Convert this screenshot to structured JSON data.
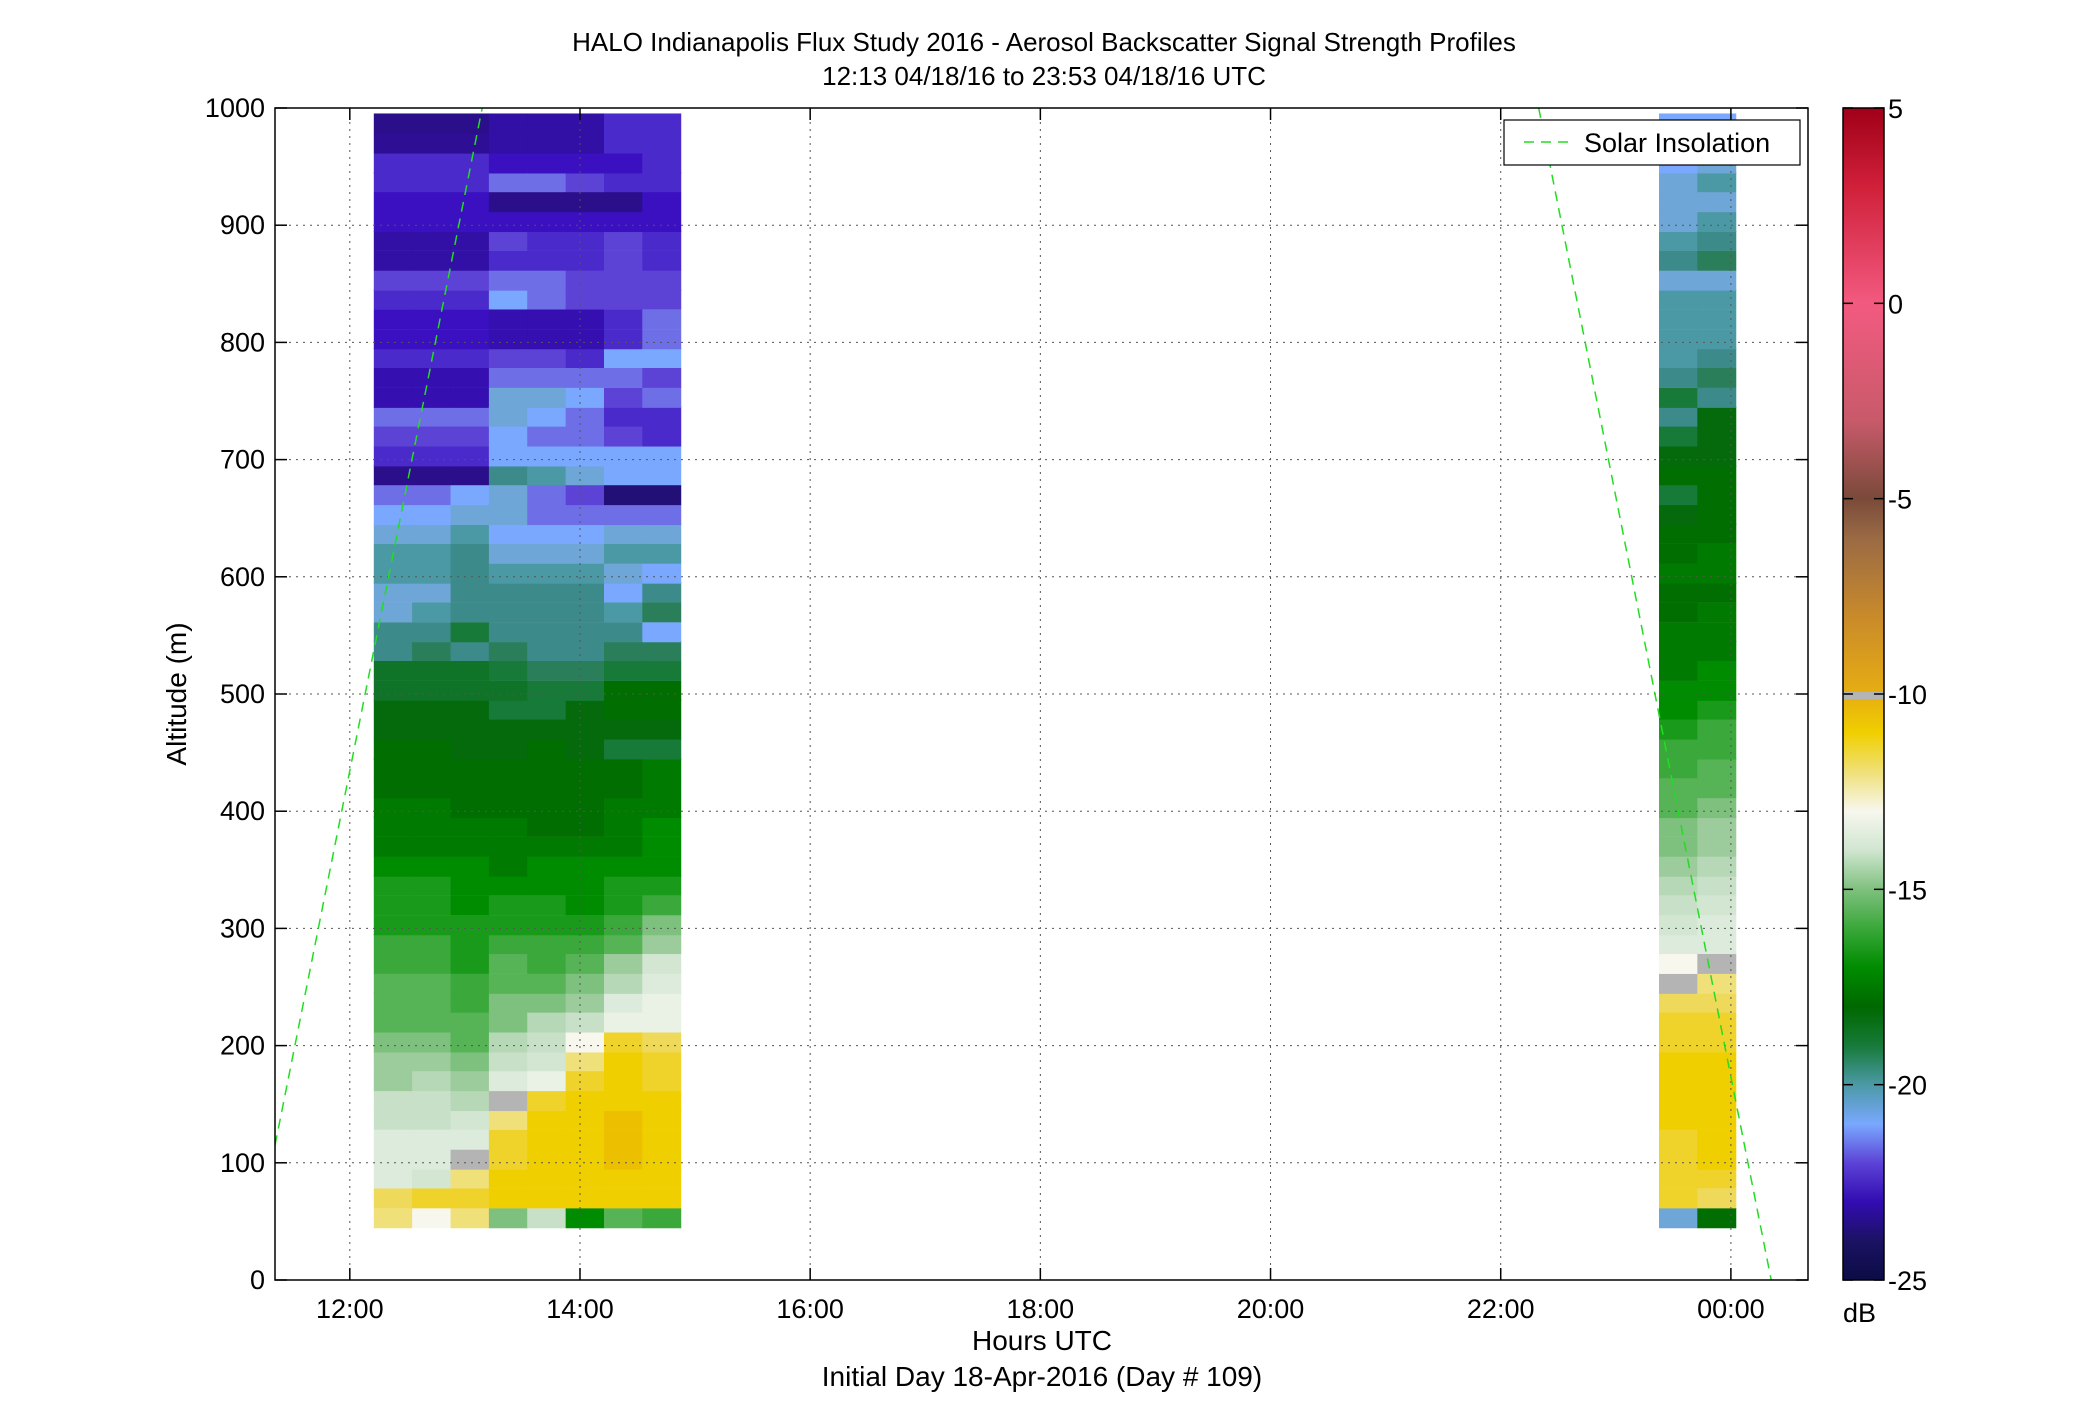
{
  "chart_data": {
    "type": "heatmap",
    "title": "HALO Indianapolis Flux Study 2016 - Aerosol Backscatter Signal Strength Profiles",
    "subtitle": "12:13 04/18/16 to 23:53 04/18/16  UTC",
    "xlabel": "Hours UTC",
    "xlabel2": "Initial Day 18-Apr-2016 (Day # 109)",
    "ylabel": "Altitude (m)",
    "xlim_hours": [
      11.35,
      24.67
    ],
    "ylim": [
      0,
      1000
    ],
    "x_ticks": [
      {
        "value": 12,
        "label": "12:00"
      },
      {
        "value": 14,
        "label": "14:00"
      },
      {
        "value": 16,
        "label": "16:00"
      },
      {
        "value": 18,
        "label": "18:00"
      },
      {
        "value": 20,
        "label": "20:00"
      },
      {
        "value": 22,
        "label": "22:00"
      },
      {
        "value": 24,
        "label": "00:00"
      }
    ],
    "y_ticks": [
      {
        "value": 0,
        "label": "0"
      },
      {
        "value": 100,
        "label": "100"
      },
      {
        "value": 200,
        "label": "200"
      },
      {
        "value": 300,
        "label": "300"
      },
      {
        "value": 400,
        "label": "400"
      },
      {
        "value": 500,
        "label": "500"
      },
      {
        "value": 600,
        "label": "600"
      },
      {
        "value": 700,
        "label": "700"
      },
      {
        "value": 800,
        "label": "800"
      },
      {
        "value": 900,
        "label": "900"
      },
      {
        "value": 1000,
        "label": "1000"
      }
    ],
    "grid": true,
    "colorbar": {
      "range": [
        -25,
        5
      ],
      "unit": "dB",
      "ticks": [
        {
          "value": 5,
          "label": "5"
        },
        {
          "value": 0,
          "label": "0"
        },
        {
          "value": -5,
          "label": "-5"
        },
        {
          "value": -10,
          "label": "-10"
        },
        {
          "value": -15,
          "label": "-15"
        },
        {
          "value": -20,
          "label": "-20"
        },
        {
          "value": -25,
          "label": "-25"
        }
      ]
    },
    "legend": {
      "placement": "top-right",
      "entries": [
        {
          "name": "Solar Insolation",
          "style": "dashed",
          "color": "#22dd22"
        }
      ]
    },
    "solar_insolation": {
      "segments": [
        [
          [
            11.35,
            115
          ],
          [
            13.15,
            1000
          ]
        ],
        [
          [
            22.33,
            1000
          ],
          [
            24.35,
            0
          ]
        ]
      ]
    },
    "altitude_bins_m": [
      53,
      70,
      87,
      103,
      120,
      137,
      153,
      170,
      187,
      203,
      220,
      237,
      253,
      270,
      287,
      303,
      320,
      337,
      353,
      370,
      387,
      403,
      420,
      437,
      453,
      470,
      487,
      503,
      520,
      537,
      553,
      570,
      587,
      603,
      620,
      637,
      653,
      670,
      687,
      703,
      720,
      737,
      753,
      770,
      787,
      803,
      820,
      837,
      853,
      870,
      887,
      903,
      920,
      937,
      953,
      970,
      987
    ],
    "profiles": [
      {
        "time_hours": 12.375,
        "width_hours": 0.333,
        "db": [
          -9,
          -8.5,
          -11,
          -11,
          -11,
          -12,
          -12,
          -13,
          -13,
          -13.5,
          -14,
          -14,
          -14,
          -14.5,
          -14.5,
          -15,
          -15,
          -15,
          -15.5,
          -16,
          -16,
          -16,
          -16.5,
          -16.5,
          -16.5,
          -17,
          -17,
          -17.3,
          -17.3,
          -18.5,
          -18.5,
          -19.5,
          -19.5,
          -19,
          -19,
          -19.5,
          -20,
          -20.5,
          -23,
          -21.5,
          -21,
          -20.5,
          -22.3,
          -22.3,
          -21.5,
          -22,
          -22,
          -21.5,
          -21,
          -22.5,
          -22.5,
          -22,
          -22,
          -21.5,
          -21.5,
          -22.8,
          -23
        ]
      },
      {
        "time_hours": 12.708,
        "width_hours": 0.333,
        "db": [
          -10,
          -8,
          -11.5,
          -11,
          -11,
          -12,
          -12,
          -12.5,
          -13,
          -13.5,
          -14,
          -14,
          -14,
          -14.5,
          -14.5,
          -15,
          -15,
          -15,
          -15.5,
          -16,
          -16,
          -16,
          -16.5,
          -16.5,
          -16.5,
          -17,
          -17,
          -17.3,
          -17.3,
          -18,
          -18.5,
          -19,
          -19.5,
          -19,
          -19,
          -19.5,
          -20,
          -20.5,
          -23,
          -21.5,
          -21,
          -20.5,
          -22.3,
          -22.3,
          -21.5,
          -22,
          -22,
          -21.5,
          -21,
          -22.5,
          -22.5,
          -22,
          -22,
          -21.5,
          -21.5,
          -22.8,
          -23
        ]
      },
      {
        "time_hours": 13.042,
        "width_hours": 0.333,
        "db": [
          -9,
          -8,
          -9,
          -9.7,
          -11,
          -11.5,
          -12.5,
          -13,
          -13.5,
          -14,
          -14,
          -14.5,
          -14.5,
          -15,
          -15,
          -15,
          -15.5,
          -15.5,
          -15.5,
          -16,
          -16,
          -16.5,
          -16.5,
          -16.5,
          -17,
          -17,
          -17,
          -17.3,
          -17.3,
          -18.5,
          -17.5,
          -18.5,
          -18.5,
          -18.5,
          -18.5,
          -19,
          -19.5,
          -20,
          -23,
          -21.5,
          -21,
          -20.5,
          -22.3,
          -22.3,
          -21.5,
          -22,
          -22,
          -21.5,
          -21,
          -22.5,
          -22.5,
          -22,
          -22,
          -21.5,
          -21.5,
          -22.8,
          -23
        ]
      },
      {
        "time_hours": 13.375,
        "width_hours": 0.333,
        "db": [
          -13.5,
          -7.5,
          -7.5,
          -8,
          -8,
          -9,
          -9.7,
          -11,
          -12,
          -12.5,
          -13.5,
          -13.5,
          -14,
          -14,
          -14.5,
          -15,
          -15,
          -15.5,
          -16,
          -16,
          -16,
          -16.5,
          -16.5,
          -16.5,
          -17,
          -17,
          -17.5,
          -17.3,
          -17.5,
          -18,
          -18.5,
          -18.5,
          -18.5,
          -19,
          -19.5,
          -20,
          -19.5,
          -19.5,
          -18.5,
          -20,
          -20,
          -19.5,
          -19.5,
          -20.5,
          -21,
          -22.3,
          -22.3,
          -20,
          -20.5,
          -21.5,
          -21,
          -22,
          -23,
          -20.5,
          -22,
          -22.5,
          -22.5
        ]
      },
      {
        "time_hours": 13.708,
        "width_hours": 0.333,
        "db": [
          -12,
          -7.5,
          -7.5,
          -7.5,
          -7.5,
          -7.5,
          -8,
          -10.5,
          -11.5,
          -12,
          -12.5,
          -13.5,
          -14,
          -14.5,
          -14.5,
          -15,
          -15,
          -15.5,
          -15.5,
          -16,
          -16.5,
          -16.5,
          -16.5,
          -16.5,
          -16.5,
          -17,
          -17.5,
          -17.5,
          -18,
          -18.5,
          -18.5,
          -18.5,
          -18.5,
          -19,
          -19.5,
          -20,
          -20.5,
          -20.5,
          -19,
          -20,
          -20.5,
          -20,
          -19.5,
          -20.5,
          -21,
          -22.3,
          -22.3,
          -20.5,
          -20.5,
          -21.5,
          -21.5,
          -22,
          -23,
          -20.5,
          -22,
          -22.5,
          -22.5
        ]
      },
      {
        "time_hours": 14.042,
        "width_hours": 0.333,
        "db": [
          -15.5,
          -7.5,
          -7.5,
          -7.5,
          -7.5,
          -7.5,
          -7.5,
          -8,
          -9,
          -10,
          -12,
          -13,
          -13.5,
          -14,
          -14.5,
          -15,
          -15.5,
          -15.5,
          -15.5,
          -16,
          -16.5,
          -16.5,
          -16.5,
          -16.5,
          -17,
          -17,
          -17,
          -17.5,
          -18,
          -18.5,
          -18.5,
          -18.5,
          -18.5,
          -19,
          -19.5,
          -20,
          -20.5,
          -21,
          -19.5,
          -20,
          -20.5,
          -20.5,
          -20,
          -20.5,
          -21.5,
          -22.3,
          -22.3,
          -21,
          -21,
          -21.5,
          -21.5,
          -22,
          -23,
          -21,
          -22,
          -22.5,
          -22.5
        ]
      },
      {
        "time_hours": 14.375,
        "width_hours": 0.333,
        "db": [
          -14,
          -7.5,
          -7.5,
          -7,
          -7,
          -7,
          -7.5,
          -7.5,
          -7.5,
          -8,
          -10.5,
          -11,
          -12.5,
          -13,
          -14,
          -14.5,
          -15,
          -15,
          -15.5,
          -16,
          -16,
          -16,
          -16.5,
          -16.5,
          -17.5,
          -17,
          -16.5,
          -16.5,
          -17.5,
          -18,
          -18.5,
          -19,
          -20,
          -19.5,
          -19,
          -19.5,
          -20.5,
          -23.5,
          -20,
          -20,
          -21,
          -21.5,
          -21,
          -20.5,
          -20,
          -21.5,
          -21.5,
          -21,
          -21,
          -21,
          -21,
          -22,
          -23,
          -21.5,
          -22,
          -21.5,
          -21.5
        ]
      },
      {
        "time_hours": 14.708,
        "width_hours": 0.333,
        "db": [
          -14.5,
          -7.5,
          -7.5,
          -7.5,
          -7.5,
          -7.5,
          -7.5,
          -8,
          -8,
          -8.5,
          -10.5,
          -10.5,
          -11,
          -11.5,
          -13,
          -13.5,
          -14.5,
          -15,
          -15.5,
          -15.5,
          -15.5,
          -16,
          -16,
          -16,
          -17.5,
          -17,
          -16.5,
          -16.5,
          -17.5,
          -18,
          -20,
          -18,
          -18.5,
          -20,
          -19,
          -19.5,
          -20.5,
          -23.5,
          -20,
          -20,
          -21.5,
          -21.5,
          -20.5,
          -21,
          -20,
          -20.5,
          -20.5,
          -21,
          -21,
          -21.5,
          -21.5,
          -22,
          -22,
          -21.5,
          -21.5,
          -21.5,
          -21.5
        ]
      },
      {
        "time_hours": 23.542,
        "width_hours": 0.333,
        "db": [
          -19.5,
          -8,
          -8,
          -8,
          -8,
          -7.5,
          -7.5,
          -7.5,
          -7.5,
          -8,
          -8,
          -8.5,
          -9,
          -10,
          -11,
          -11.5,
          -12,
          -12.5,
          -13,
          -13.5,
          -13.5,
          -14,
          -14,
          -14.5,
          -14.5,
          -15,
          -15.5,
          -15.5,
          -16,
          -16,
          -16,
          -16.5,
          -16.5,
          -16,
          -16.5,
          -16.5,
          -17,
          -17.5,
          -16.5,
          -17,
          -17.5,
          -18.5,
          -17.5,
          -18.5,
          -19,
          -19,
          -19,
          -19,
          -19.5,
          -18.5,
          -19,
          -19.5,
          -19.5,
          -19.5,
          -20,
          -20,
          -20
        ]
      },
      {
        "time_hours": 23.875,
        "width_hours": 0.333,
        "db": [
          -16.5,
          -8.5,
          -8,
          -7.5,
          -7.5,
          -7.5,
          -7.5,
          -7.5,
          -7.5,
          -8,
          -8,
          -8.5,
          -9,
          -10,
          -11,
          -11,
          -11.5,
          -12,
          -12.5,
          -13,
          -13,
          -13.5,
          -14,
          -14,
          -14.5,
          -14.5,
          -15,
          -15.5,
          -15.5,
          -16,
          -16,
          -16,
          -16.5,
          -16,
          -16,
          -16.5,
          -16.5,
          -16.5,
          -16.5,
          -17,
          -17,
          -17,
          -18.5,
          -18,
          -18.5,
          -19,
          -19,
          -19,
          -19.5,
          -18,
          -18.5,
          -19,
          -19.5,
          -19,
          -19.5,
          -20,
          -20
        ]
      }
    ],
    "missing_cells": [
      {
        "profile": 2,
        "altitude_bin": 3
      },
      {
        "profile": 3,
        "altitude_bin": 6
      },
      {
        "profile": 8,
        "altitude_bin": 12
      },
      {
        "profile": 9,
        "altitude_bin": 13
      }
    ],
    "colors": {
      "missing": "#b4b4b4",
      "grid": "#555555",
      "solar": "#22dd22"
    }
  }
}
